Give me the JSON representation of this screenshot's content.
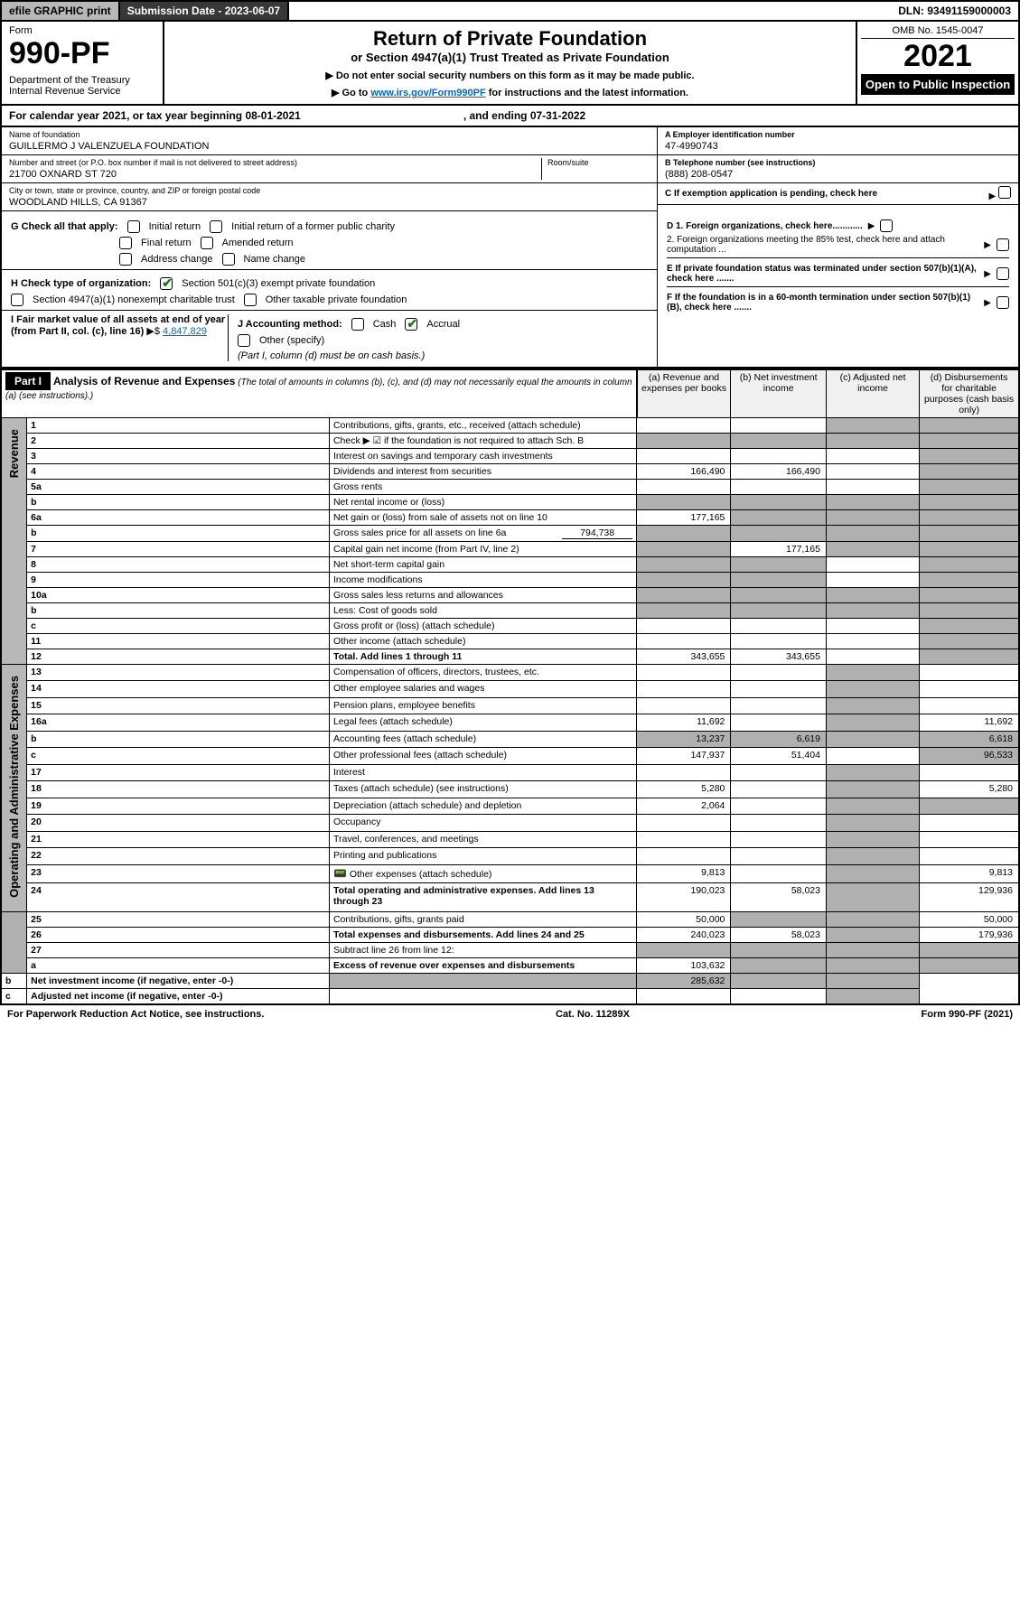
{
  "topbar": {
    "efile": "efile GRAPHIC print",
    "submission": "Submission Date - 2023-06-07",
    "dln": "DLN: 93491159000003"
  },
  "header": {
    "form_label": "Form",
    "form_no": "990-PF",
    "dept": "Department of the Treasury\nInternal Revenue Service",
    "title": "Return of Private Foundation",
    "subtitle": "or Section 4947(a)(1) Trust Treated as Private Foundation",
    "instr1": "Do not enter social security numbers on this form as it may be made public.",
    "instr2_pre": "Go to ",
    "instr2_link": "www.irs.gov/Form990PF",
    "instr2_post": " for instructions and the latest information.",
    "omb": "OMB No. 1545-0047",
    "year": "2021",
    "inspect": "Open to Public Inspection"
  },
  "cal": {
    "text": "For calendar year 2021, or tax year beginning 08-01-2021",
    "end": ", and ending 07-31-2022"
  },
  "entity": {
    "name_lbl": "Name of foundation",
    "name": "GUILLERMO J VALENZUELA FOUNDATION",
    "addr_lbl": "Number and street (or P.O. box number if mail is not delivered to street address)",
    "addr": "21700 OXNARD ST 720",
    "room_lbl": "Room/suite",
    "city_lbl": "City or town, state or province, country, and ZIP or foreign postal code",
    "city": "WOODLAND HILLS, CA  91367",
    "ein_lbl": "A Employer identification number",
    "ein": "47-4990743",
    "tel_lbl": "B Telephone number (see instructions)",
    "tel": "(888) 208-0547",
    "c_lbl": "C If exemption application is pending, check here"
  },
  "checks": {
    "g_lbl": "G Check all that apply:",
    "g_opts": [
      "Initial return",
      "Initial return of a former public charity",
      "Final return",
      "Amended return",
      "Address change",
      "Name change"
    ],
    "h_lbl": "H Check type of organization:",
    "h1": "Section 501(c)(3) exempt private foundation",
    "h2": "Section 4947(a)(1) nonexempt charitable trust",
    "h3": "Other taxable private foundation",
    "i_lbl": "I Fair market value of all assets at end of year (from Part II, col. (c), line 16)",
    "i_val": "4,847,829",
    "j_lbl": "J Accounting method:",
    "j_cash": "Cash",
    "j_accr": "Accrual",
    "j_other": "Other (specify)",
    "j_note": "(Part I, column (d) must be on cash basis.)",
    "d1": "D 1. Foreign organizations, check here............",
    "d2": "2. Foreign organizations meeting the 85% test, check here and attach computation ...",
    "e": "E  If private foundation status was terminated under section 507(b)(1)(A), check here .......",
    "f": "F  If the foundation is in a 60-month termination under section 507(b)(1)(B), check here ......."
  },
  "part1": {
    "label": "Part I",
    "title": "Analysis of Revenue and Expenses",
    "note": "(The total of amounts in columns (b), (c), and (d) may not necessarily equal the amounts in column (a) (see instructions).)",
    "col_a": "(a)  Revenue and expenses per books",
    "col_b": "(b)  Net investment income",
    "col_c": "(c)  Adjusted net income",
    "col_d": "(d)  Disbursements for charitable purposes (cash basis only)"
  },
  "side": {
    "rev": "Revenue",
    "exp": "Operating and Administrative Expenses"
  },
  "rows": [
    {
      "n": "1",
      "d": "Contributions, gifts, grants, etc., received (attach schedule)"
    },
    {
      "n": "2",
      "d": "Check ▶ ☑ if the foundation is not required to attach Sch. B"
    },
    {
      "n": "3",
      "d": "Interest on savings and temporary cash investments"
    },
    {
      "n": "4",
      "d": "Dividends and interest from securities",
      "a": "166,490",
      "b": "166,490"
    },
    {
      "n": "5a",
      "d": "Gross rents"
    },
    {
      "n": "b",
      "d": "Net rental income or (loss)"
    },
    {
      "n": "6a",
      "d": "Net gain or (loss) from sale of assets not on line 10",
      "a": "177,165"
    },
    {
      "n": "b",
      "d": "Gross sales price for all assets on line 6a",
      "inline": "794,738"
    },
    {
      "n": "7",
      "d": "Capital gain net income (from Part IV, line 2)",
      "b": "177,165"
    },
    {
      "n": "8",
      "d": "Net short-term capital gain"
    },
    {
      "n": "9",
      "d": "Income modifications"
    },
    {
      "n": "10a",
      "d": "Gross sales less returns and allowances"
    },
    {
      "n": "b",
      "d": "Less: Cost of goods sold"
    },
    {
      "n": "c",
      "d": "Gross profit or (loss) (attach schedule)"
    },
    {
      "n": "11",
      "d": "Other income (attach schedule)"
    },
    {
      "n": "12",
      "d": "Total. Add lines 1 through 11",
      "a": "343,655",
      "b": "343,655",
      "bold": true
    },
    {
      "n": "13",
      "d": "Compensation of officers, directors, trustees, etc."
    },
    {
      "n": "14",
      "d": "Other employee salaries and wages"
    },
    {
      "n": "15",
      "d": "Pension plans, employee benefits"
    },
    {
      "n": "16a",
      "d": "Legal fees (attach schedule)",
      "a": "11,692",
      "dd": "11,692"
    },
    {
      "n": "b",
      "d": "Accounting fees (attach schedule)",
      "a": "13,237",
      "b": "6,619",
      "dd": "6,618"
    },
    {
      "n": "c",
      "d": "Other professional fees (attach schedule)",
      "a": "147,937",
      "b": "51,404",
      "dd": "96,533"
    },
    {
      "n": "17",
      "d": "Interest"
    },
    {
      "n": "18",
      "d": "Taxes (attach schedule) (see instructions)",
      "a": "5,280",
      "dd": "5,280"
    },
    {
      "n": "19",
      "d": "Depreciation (attach schedule) and depletion",
      "a": "2,064"
    },
    {
      "n": "20",
      "d": "Occupancy"
    },
    {
      "n": "21",
      "d": "Travel, conferences, and meetings"
    },
    {
      "n": "22",
      "d": "Printing and publications"
    },
    {
      "n": "23",
      "d": "Other expenses (attach schedule)",
      "a": "9,813",
      "dd": "9,813",
      "icon": true
    },
    {
      "n": "24",
      "d": "Total operating and administrative expenses. Add lines 13 through 23",
      "a": "190,023",
      "b": "58,023",
      "dd": "129,936",
      "bold": true
    },
    {
      "n": "25",
      "d": "Contributions, gifts, grants paid",
      "a": "50,000",
      "dd": "50,000"
    },
    {
      "n": "26",
      "d": "Total expenses and disbursements. Add lines 24 and 25",
      "a": "240,023",
      "b": "58,023",
      "dd": "179,936",
      "bold": true
    },
    {
      "n": "27",
      "d": "Subtract line 26 from line 12:"
    },
    {
      "n": "a",
      "d": "Excess of revenue over expenses and disbursements",
      "a": "103,632",
      "bold": true
    },
    {
      "n": "b",
      "d": "Net investment income (if negative, enter -0-)",
      "b": "285,632",
      "bold": true
    },
    {
      "n": "c",
      "d": "Adjusted net income (if negative, enter -0-)",
      "bold": true
    }
  ],
  "footer": {
    "pra": "For Paperwork Reduction Act Notice, see instructions.",
    "cat": "Cat. No. 11289X",
    "form": "Form 990-PF (2021)"
  },
  "colors": {
    "grey_bg": "#b0b0b0",
    "link": "#0066cc",
    "check": "#1a7a1a"
  }
}
